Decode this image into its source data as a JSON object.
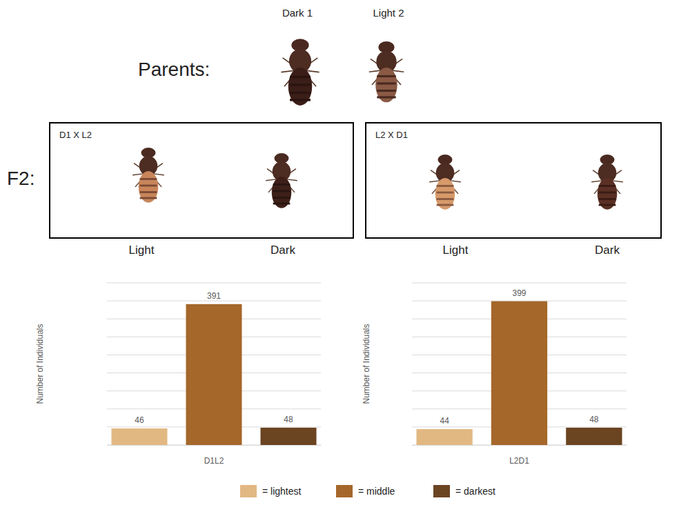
{
  "figure": {
    "parents_label": "Parents:",
    "parent_names": [
      "Dark 1",
      "Light 2"
    ],
    "f2_label": "F2:",
    "panels": [
      {
        "title": "D1 X L2",
        "labels": [
          "Light",
          "Dark"
        ]
      },
      {
        "title": "L2 X D1",
        "labels": [
          "Light",
          "Dark"
        ]
      }
    ],
    "legend_labels": [
      "= lightest",
      "= middle",
      "= darkest"
    ]
  },
  "chart_data": [
    {
      "type": "bar",
      "xlabel": "D1L2",
      "ylabel": "Number of Individuals",
      "categories": [
        null,
        null,
        null
      ],
      "values": [
        46,
        391,
        48
      ],
      "colors": [
        "#e2b882",
        "#a5672a",
        "#6b4422"
      ],
      "ylim": [
        0,
        450
      ],
      "yticks": [
        0,
        50,
        100,
        150,
        200,
        250,
        300,
        350,
        400,
        450
      ],
      "grid": true,
      "tick_labels": false,
      "data_labels": true
    },
    {
      "type": "bar",
      "xlabel": "L2D1",
      "ylabel": "Number of Individuals",
      "categories": [
        null,
        null,
        null
      ],
      "values": [
        44,
        399,
        48
      ],
      "colors": [
        "#e2b882",
        "#a5672a",
        "#6b4422"
      ],
      "ylim": [
        0,
        450
      ],
      "yticks": [
        0,
        50,
        100,
        150,
        200,
        250,
        300,
        350,
        400,
        450
      ],
      "grid": true,
      "tick_labels": false,
      "data_labels": true
    }
  ]
}
